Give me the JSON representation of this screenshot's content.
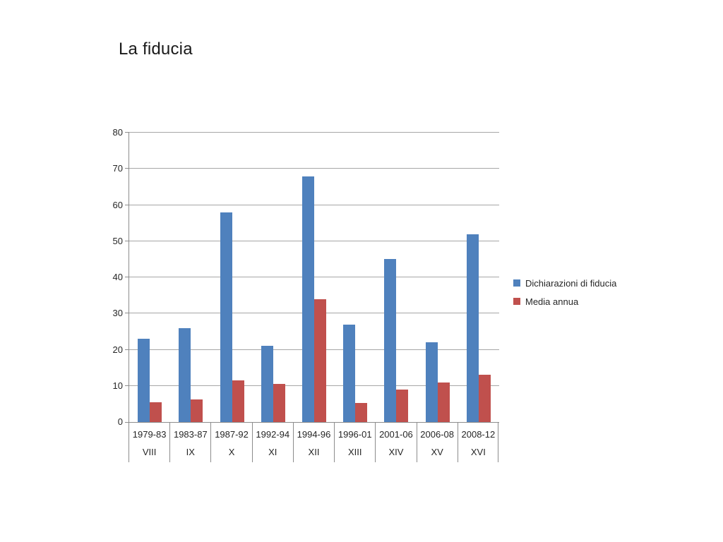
{
  "slide": {
    "title": "La fiducia"
  },
  "colors": {
    "series_fiducia": "#4F81BD",
    "series_media": "#C0504D",
    "gridline": "#A6A6A6",
    "axis": "#8C8C8C",
    "text": "#262626"
  },
  "chart_data": {
    "type": "bar",
    "title": "La fiducia",
    "categories": [
      "1979-83",
      "1983-87",
      "1987-92",
      "1992-94",
      "1994-96",
      "1996-01",
      "2001-06",
      "2006-08",
      "2008-12"
    ],
    "categories_row2": [
      "VIII",
      "IX",
      "X",
      "XI",
      "XII",
      "XIII",
      "XIV",
      "XV",
      "XVI"
    ],
    "series": [
      {
        "name": "Dichiarazioni di fiducia",
        "color": "#4F81BD",
        "values": [
          23,
          26,
          58,
          21,
          68,
          27,
          45,
          22,
          52
        ]
      },
      {
        "name": "Media annua",
        "color": "#C0504D",
        "values": [
          5.5,
          6.3,
          11.5,
          10.5,
          34,
          5.2,
          9,
          11,
          13
        ]
      }
    ],
    "xlabel": "",
    "ylabel": "",
    "ylim": [
      0,
      80
    ],
    "yticks": [
      0,
      10,
      20,
      30,
      40,
      50,
      60,
      70,
      80
    ],
    "grid": true,
    "legend_position": "right"
  }
}
